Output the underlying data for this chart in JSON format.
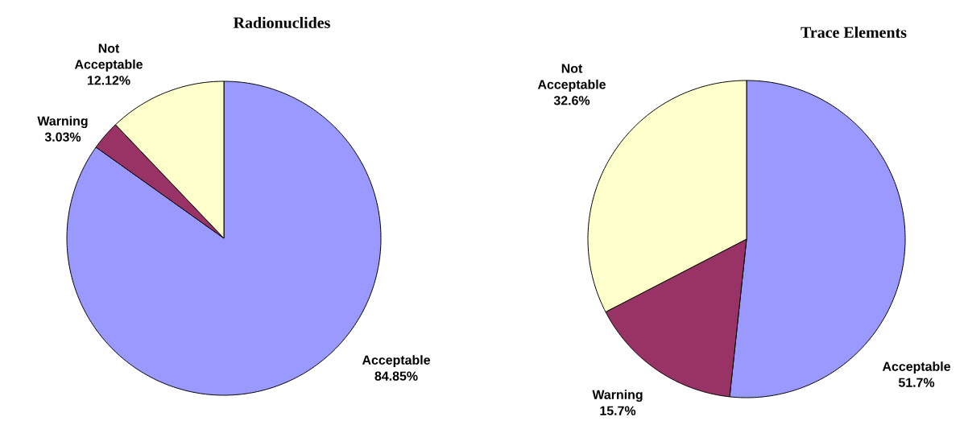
{
  "chart_data": [
    {
      "type": "pie",
      "title": "Radionuclides",
      "categories": [
        "Acceptable",
        "Warning",
        "Not Acceptable"
      ],
      "values": [
        84.85,
        3.03,
        12.12
      ],
      "colors": [
        "#9999ff",
        "#993366",
        "#ffffcc"
      ],
      "value_labels": [
        "84.85%",
        "3.03%",
        "12.12%"
      ]
    },
    {
      "type": "pie",
      "title": "Trace Elements",
      "categories": [
        "Acceptable",
        "Warning",
        "Not Acceptable"
      ],
      "values": [
        51.7,
        15.7,
        32.6
      ],
      "colors": [
        "#9999ff",
        "#993366",
        "#ffffcc"
      ],
      "value_labels": [
        "51.7%",
        "15.7%",
        "32.6%"
      ]
    }
  ]
}
